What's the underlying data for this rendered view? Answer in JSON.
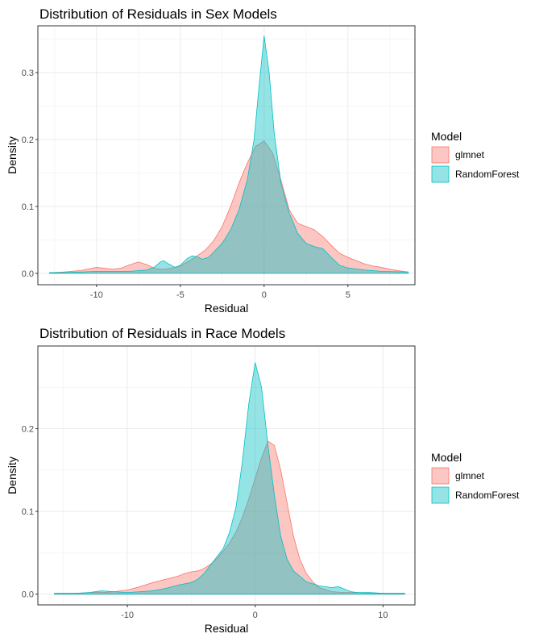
{
  "colors": {
    "glmnet_fill": "#F8766D",
    "rf_fill": "#00BFC4",
    "grid": "#ebebeb",
    "border": "#333333"
  },
  "chart_data": [
    {
      "type": "area",
      "title": "Distribution of Residuals in Sex Models",
      "xlabel": "Residual",
      "ylabel": "Density",
      "xlim": [
        -13.5,
        9.0
      ],
      "ylim": [
        -0.017,
        0.37
      ],
      "xticks": [
        -10,
        -5,
        0,
        5
      ],
      "xtick_labels": [
        "-10",
        "-5",
        "0",
        "5"
      ],
      "yticks": [
        0.0,
        0.1,
        0.2,
        0.3
      ],
      "ytick_labels": [
        "0.0",
        "0.1",
        "0.2",
        "0.3"
      ],
      "legend": {
        "title": "Model",
        "position": "right",
        "entries": [
          "glmnet",
          "RandomForest"
        ]
      },
      "grid": true,
      "series": [
        {
          "name": "glmnet",
          "x": [
            -12.8,
            -12,
            -11,
            -10,
            -9,
            -8.5,
            -8,
            -7.5,
            -7,
            -6.5,
            -6,
            -5.5,
            -5,
            -4.5,
            -4,
            -3.5,
            -3,
            -2.5,
            -2,
            -1.5,
            -1,
            -0.5,
            0,
            0.5,
            1,
            1.5,
            2,
            2.5,
            3,
            3.5,
            4,
            4.5,
            5,
            5.5,
            6,
            6.5,
            7,
            7.5,
            8,
            8.6
          ],
          "y": [
            0.001,
            0.002,
            0.004,
            0.009,
            0.006,
            0.008,
            0.013,
            0.017,
            0.013,
            0.007,
            0.006,
            0.008,
            0.011,
            0.018,
            0.026,
            0.035,
            0.049,
            0.07,
            0.1,
            0.135,
            0.165,
            0.19,
            0.198,
            0.18,
            0.14,
            0.095,
            0.075,
            0.07,
            0.065,
            0.055,
            0.042,
            0.03,
            0.024,
            0.019,
            0.014,
            0.011,
            0.009,
            0.006,
            0.004,
            0.002
          ]
        },
        {
          "name": "RandomForest",
          "x": [
            -12.8,
            -12,
            -11,
            -10,
            -9,
            -8,
            -7,
            -6.5,
            -6.2,
            -6,
            -5.7,
            -5.3,
            -5,
            -4.6,
            -4.3,
            -4,
            -3.7,
            -3.3,
            -3,
            -2.5,
            -2,
            -1.5,
            -1,
            -0.6,
            -0.3,
            0,
            0.3,
            0.6,
            1,
            1.5,
            2,
            2.5,
            3,
            3.5,
            4,
            4.5,
            5,
            6,
            7,
            8.6
          ],
          "y": [
            0.001,
            0.001,
            0.002,
            0.003,
            0.003,
            0.003,
            0.005,
            0.01,
            0.017,
            0.019,
            0.014,
            0.009,
            0.012,
            0.022,
            0.026,
            0.025,
            0.021,
            0.024,
            0.032,
            0.045,
            0.065,
            0.095,
            0.14,
            0.2,
            0.28,
            0.355,
            0.3,
            0.21,
            0.135,
            0.09,
            0.06,
            0.045,
            0.04,
            0.037,
            0.024,
            0.012,
            0.008,
            0.005,
            0.003,
            0.002
          ]
        }
      ]
    },
    {
      "type": "area",
      "title": "Distribution of Residuals in Race Models",
      "xlabel": "Residual",
      "ylabel": "Density",
      "xlim": [
        -17.0,
        12.5
      ],
      "ylim": [
        -0.013,
        0.3
      ],
      "xticks": [
        -10,
        0,
        10
      ],
      "xtick_labels": [
        "-10",
        "0",
        "10"
      ],
      "yticks": [
        0.0,
        0.1,
        0.2
      ],
      "ytick_labels": [
        "0.0",
        "0.1",
        "0.2"
      ],
      "legend": {
        "title": "Model",
        "position": "right",
        "entries": [
          "glmnet",
          "RandomForest"
        ]
      },
      "grid": true,
      "series": [
        {
          "name": "glmnet",
          "x": [
            -15.7,
            -14,
            -13,
            -12,
            -11,
            -10,
            -9,
            -8,
            -7,
            -6,
            -5.5,
            -5,
            -4.5,
            -4,
            -3.5,
            -3,
            -2.5,
            -2,
            -1.5,
            -1,
            -0.5,
            0,
            0.5,
            1,
            1.5,
            2,
            2.5,
            3,
            3.5,
            4,
            4.5,
            5,
            6,
            7,
            8,
            9,
            10,
            11,
            11.7
          ],
          "y": [
            0.001,
            0.001,
            0.002,
            0.002,
            0.003,
            0.005,
            0.009,
            0.014,
            0.018,
            0.022,
            0.025,
            0.027,
            0.028,
            0.031,
            0.036,
            0.043,
            0.052,
            0.062,
            0.075,
            0.093,
            0.115,
            0.14,
            0.165,
            0.185,
            0.18,
            0.15,
            0.11,
            0.07,
            0.042,
            0.025,
            0.015,
            0.008,
            0.003,
            0.002,
            0.002,
            0.001,
            0.001,
            0.001,
            0.001
          ]
        },
        {
          "name": "RandomForest",
          "x": [
            -15.7,
            -14,
            -13,
            -12,
            -11,
            -10,
            -9,
            -8,
            -7,
            -6,
            -5,
            -4.5,
            -4,
            -3.5,
            -3,
            -2.5,
            -2,
            -1.5,
            -1,
            -0.5,
            0,
            0.5,
            1,
            1.5,
            2,
            2.5,
            3,
            4,
            5,
            6,
            6.5,
            7,
            7.5,
            8,
            9,
            10,
            11,
            11.7
          ],
          "y": [
            0.001,
            0.001,
            0.002,
            0.004,
            0.003,
            0.002,
            0.003,
            0.004,
            0.007,
            0.011,
            0.014,
            0.018,
            0.025,
            0.035,
            0.045,
            0.055,
            0.075,
            0.105,
            0.16,
            0.23,
            0.28,
            0.25,
            0.18,
            0.12,
            0.07,
            0.042,
            0.028,
            0.015,
            0.01,
            0.008,
            0.009,
            0.006,
            0.003,
            0.002,
            0.002,
            0.001,
            0.001,
            0.001
          ]
        }
      ]
    }
  ]
}
